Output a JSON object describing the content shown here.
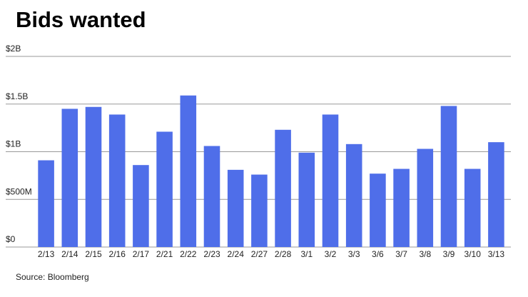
{
  "chart_data": {
    "type": "bar",
    "title": "Bids wanted",
    "source": "Source: Bloomberg",
    "categories": [
      "2/13",
      "2/14",
      "2/15",
      "2/16",
      "2/17",
      "2/21",
      "2/22",
      "2/23",
      "2/24",
      "2/27",
      "2/28",
      "3/1",
      "3/2",
      "3/3",
      "3/6",
      "3/7",
      "3/8",
      "3/9",
      "3/10",
      "3/13"
    ],
    "values": [
      0.91,
      1.45,
      1.47,
      1.39,
      0.86,
      1.21,
      1.59,
      1.06,
      0.81,
      0.76,
      1.23,
      0.99,
      1.39,
      1.08,
      0.77,
      0.82,
      1.03,
      1.48,
      0.82,
      1.1
    ],
    "color": "#4f6ee9",
    "ylim": [
      0,
      2
    ],
    "yticks": [
      {
        "value": 0,
        "label": "$0"
      },
      {
        "value": 0.5,
        "label": "$500M"
      },
      {
        "value": 1,
        "label": "$1B"
      },
      {
        "value": 1.5,
        "label": "$1.5B"
      },
      {
        "value": 2,
        "label": "$2B"
      }
    ],
    "grid": true
  }
}
